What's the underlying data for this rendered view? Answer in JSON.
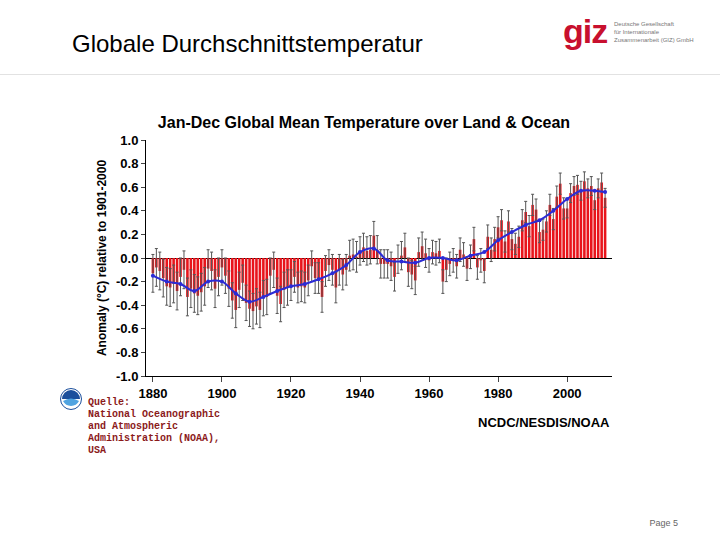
{
  "header": {
    "title": "Globale Durchschnittstemperatur",
    "logo": "giz",
    "logo_text": [
      "Deutsche Gesellschaft",
      "für Internationale",
      "Zusammenarbeit (GIZ) GmbH"
    ]
  },
  "source": [
    "Quelle:",
    "National Oceanographic",
    "and Atmospheric",
    "Administration (NOAA),",
    "USA"
  ],
  "page": "Page 5",
  "chart_data": {
    "type": "bar",
    "title": "Jan-Dec Global Mean Temperature over Land & Ocean",
    "y_label": "Anomaly (°C) relative to 1901-2000",
    "annotation": "NCDC/NESDIS/NOAA",
    "grid": false,
    "xlim": [
      1878,
      2013
    ],
    "xticks": [
      1880,
      1900,
      1920,
      1940,
      1960,
      1980,
      2000
    ],
    "ylim": [
      -1.0,
      1.0
    ],
    "yticks": [
      {
        "value": -1.0,
        "label": "-1.0"
      },
      -0.8,
      -0.6,
      -0.4,
      -0.2,
      {
        "value": 0.0,
        "label": "0.0"
      },
      0.2,
      0.4,
      0.6,
      0.8,
      {
        "value": 1.0,
        "label": "1.0"
      }
    ],
    "x": [
      1880,
      1881,
      1882,
      1883,
      1884,
      1885,
      1886,
      1887,
      1888,
      1889,
      1890,
      1891,
      1892,
      1893,
      1894,
      1895,
      1896,
      1897,
      1898,
      1899,
      1900,
      1901,
      1902,
      1903,
      1904,
      1905,
      1906,
      1907,
      1908,
      1909,
      1910,
      1911,
      1912,
      1913,
      1914,
      1915,
      1916,
      1917,
      1918,
      1919,
      1920,
      1921,
      1922,
      1923,
      1924,
      1925,
      1926,
      1927,
      1928,
      1929,
      1930,
      1931,
      1932,
      1933,
      1934,
      1935,
      1936,
      1937,
      1938,
      1939,
      1940,
      1941,
      1942,
      1943,
      1944,
      1945,
      1946,
      1947,
      1948,
      1949,
      1950,
      1951,
      1952,
      1953,
      1954,
      1955,
      1956,
      1957,
      1958,
      1959,
      1960,
      1961,
      1962,
      1963,
      1964,
      1965,
      1966,
      1967,
      1968,
      1969,
      1970,
      1971,
      1972,
      1973,
      1974,
      1975,
      1976,
      1977,
      1978,
      1979,
      1980,
      1981,
      1982,
      1983,
      1984,
      1985,
      1986,
      1987,
      1988,
      1989,
      1990,
      1991,
      1992,
      1993,
      1994,
      1995,
      1996,
      1997,
      1998,
      1999,
      2000,
      2001,
      2002,
      2003,
      2004,
      2005,
      2006,
      2007,
      2008,
      2009,
      2010,
      2011
    ],
    "series": [
      {
        "type": "bar",
        "color": "#e8141b",
        "values": [
          -0.13,
          -0.08,
          -0.11,
          -0.17,
          -0.24,
          -0.25,
          -0.22,
          -0.28,
          -0.16,
          -0.1,
          -0.33,
          -0.26,
          -0.3,
          -0.32,
          -0.29,
          -0.24,
          -0.09,
          -0.11,
          -0.26,
          -0.16,
          -0.08,
          -0.15,
          -0.26,
          -0.36,
          -0.44,
          -0.27,
          -0.21,
          -0.38,
          -0.43,
          -0.45,
          -0.41,
          -0.44,
          -0.34,
          -0.33,
          -0.15,
          -0.1,
          -0.32,
          -0.39,
          -0.27,
          -0.25,
          -0.23,
          -0.16,
          -0.25,
          -0.24,
          -0.25,
          -0.19,
          -0.07,
          -0.17,
          -0.17,
          -0.33,
          -0.11,
          -0.06,
          -0.1,
          -0.25,
          -0.1,
          -0.14,
          -0.1,
          0.02,
          0.03,
          0.01,
          0.06,
          0.09,
          0.06,
          0.07,
          0.19,
          0.07,
          -0.05,
          -0.05,
          -0.05,
          -0.07,
          -0.16,
          -0.01,
          0.02,
          0.09,
          -0.12,
          -0.14,
          -0.19,
          0.05,
          0.1,
          0.04,
          -0.02,
          0.05,
          0.04,
          0.06,
          -0.2,
          -0.1,
          -0.05,
          -0.02,
          -0.07,
          0.07,
          0.03,
          -0.09,
          0.01,
          0.16,
          -0.08,
          -0.02,
          -0.11,
          0.18,
          0.07,
          0.16,
          0.26,
          0.32,
          0.14,
          0.31,
          0.16,
          0.12,
          0.18,
          0.32,
          0.39,
          0.27,
          0.45,
          0.41,
          0.22,
          0.24,
          0.31,
          0.45,
          0.33,
          0.52,
          0.63,
          0.42,
          0.42,
          0.55,
          0.61,
          0.62,
          0.57,
          0.65,
          0.59,
          0.61,
          0.49,
          0.59,
          0.64,
          0.51
        ],
        "error": [
          0.16,
          0.16,
          0.16,
          0.16,
          0.16,
          0.16,
          0.16,
          0.16,
          0.16,
          0.16,
          0.16,
          0.16,
          0.16,
          0.16,
          0.16,
          0.16,
          0.16,
          0.16,
          0.16,
          0.16,
          0.15,
          0.15,
          0.15,
          0.15,
          0.15,
          0.15,
          0.15,
          0.15,
          0.15,
          0.15,
          0.15,
          0.15,
          0.15,
          0.15,
          0.15,
          0.15,
          0.15,
          0.15,
          0.15,
          0.15,
          0.13,
          0.13,
          0.13,
          0.13,
          0.13,
          0.13,
          0.13,
          0.13,
          0.13,
          0.13,
          0.13,
          0.13,
          0.13,
          0.13,
          0.13,
          0.13,
          0.13,
          0.13,
          0.13,
          0.13,
          0.12,
          0.12,
          0.12,
          0.12,
          0.12,
          0.12,
          0.12,
          0.12,
          0.12,
          0.12,
          0.12,
          0.12,
          0.12,
          0.12,
          0.12,
          0.12,
          0.12,
          0.12,
          0.12,
          0.12,
          0.1,
          0.1,
          0.1,
          0.1,
          0.1,
          0.1,
          0.1,
          0.1,
          0.1,
          0.1,
          0.1,
          0.1,
          0.1,
          0.1,
          0.1,
          0.1,
          0.1,
          0.1,
          0.1,
          0.1,
          0.09,
          0.09,
          0.09,
          0.09,
          0.09,
          0.09,
          0.09,
          0.09,
          0.09,
          0.09,
          0.09,
          0.09,
          0.09,
          0.09,
          0.09,
          0.09,
          0.09,
          0.09,
          0.09,
          0.09,
          0.08,
          0.08,
          0.08,
          0.08,
          0.08,
          0.08,
          0.08,
          0.08,
          0.08,
          0.08,
          0.08,
          0.08
        ]
      },
      {
        "type": "line",
        "color": "#2b2bd6",
        "marker": "circle",
        "x": [
          1880,
          1884,
          1888,
          1892,
          1896,
          1900,
          1904,
          1908,
          1912,
          1916,
          1920,
          1924,
          1928,
          1932,
          1936,
          1940,
          1944,
          1948,
          1952,
          1956,
          1960,
          1964,
          1968,
          1972,
          1976,
          1980,
          1984,
          1988,
          1992,
          1996,
          2000,
          2004,
          2008,
          2011
        ],
        "values": [
          -0.15,
          -0.2,
          -0.22,
          -0.28,
          -0.2,
          -0.2,
          -0.3,
          -0.37,
          -0.33,
          -0.28,
          -0.24,
          -0.22,
          -0.18,
          -0.13,
          -0.06,
          0.05,
          0.08,
          -0.02,
          -0.03,
          -0.04,
          0.0,
          0.0,
          -0.02,
          0.02,
          0.05,
          0.15,
          0.22,
          0.28,
          0.32,
          0.4,
          0.5,
          0.57,
          0.57,
          0.56
        ]
      }
    ]
  }
}
